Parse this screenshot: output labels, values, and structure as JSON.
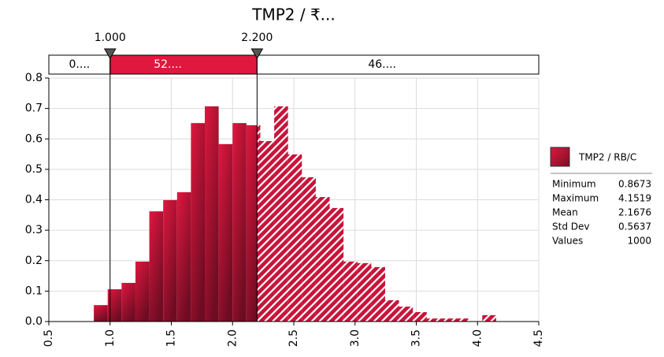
{
  "chart_data": {
    "type": "histogram",
    "title": "TMP2 / ₹...",
    "bins": [
      0.8673,
      0.9806,
      1.0938,
      1.2071,
      1.3204,
      1.4336,
      1.5469,
      1.6601,
      1.7734,
      1.8867,
      1.9999,
      2.1132,
      2.2265,
      2.3397,
      2.453,
      2.5662,
      2.6795,
      2.7928,
      2.906,
      3.0193,
      3.1325,
      3.2458,
      3.3591,
      3.4723,
      3.5856,
      3.6989,
      3.8121,
      3.9254,
      4.0386,
      4.1519
    ],
    "series": [
      {
        "name": "TMP2 / RB/C",
        "color": "#d4163f",
        "values": [
          0.054,
          0.106,
          0.127,
          0.197,
          0.362,
          0.399,
          0.425,
          0.652,
          0.707,
          0.583,
          0.652,
          0.645,
          0.593,
          0.707,
          0.549,
          0.474,
          0.409,
          0.373,
          0.197,
          0.192,
          0.179,
          0.07,
          0.049,
          0.031,
          0.01,
          0.01,
          0.01,
          0,
          0.021
        ]
      }
    ],
    "xlim": [
      0.5,
      4.5
    ],
    "xticks": [
      0.5,
      {
        "value": 1,
        "label": "1.0"
      },
      1.5,
      {
        "value": 2,
        "label": "2.0"
      },
      2.5,
      {
        "value": 3,
        "label": "3.0"
      },
      3.5,
      {
        "value": 4,
        "label": "4.0"
      },
      4.5
    ],
    "ylim": [
      0,
      0.8
    ],
    "yticks": [
      {
        "value": 0,
        "label": "0.0"
      },
      0.1,
      0.2,
      0.3,
      0.4,
      0.5,
      0.6,
      0.7,
      0.8
    ],
    "grid": true,
    "delimiters": [
      {
        "value": 1,
        "label": "1.000"
      },
      {
        "value": 2.2,
        "label": "2.200"
      }
    ],
    "region_labels": [
      "0....",
      "52....",
      "46...."
    ],
    "stats": [
      [
        "Minimum",
        "0.8673"
      ],
      [
        "Maximum",
        "4.1519"
      ],
      [
        "Mean",
        "2.1676"
      ],
      [
        "Std Dev",
        "0.5637"
      ],
      [
        "Values",
        "1000"
      ]
    ]
  }
}
